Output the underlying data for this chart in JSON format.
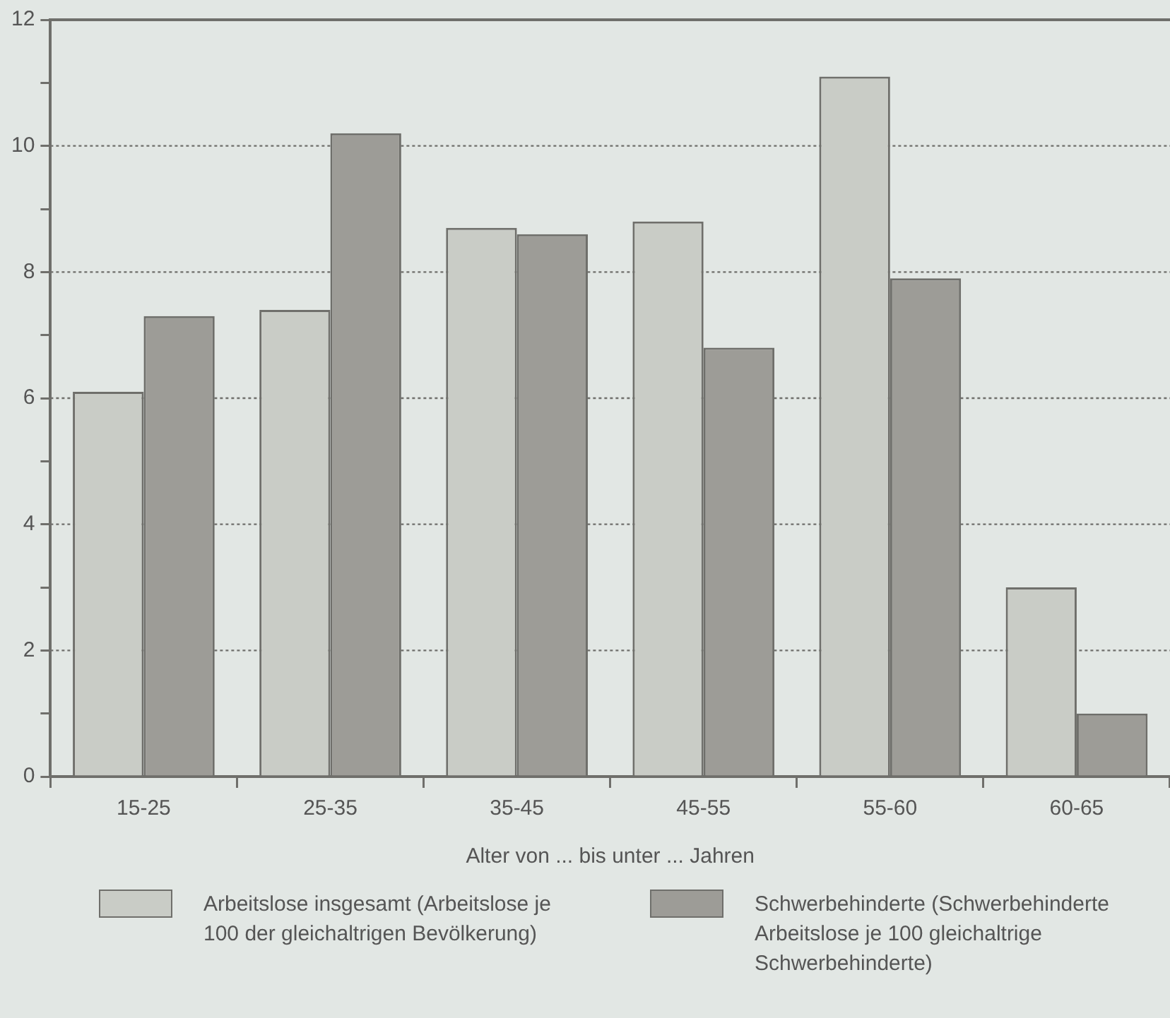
{
  "chart_data": {
    "type": "bar",
    "xlabel": "Alter von ... bis unter ... Jahren",
    "categories": [
      "15-25",
      "25-35",
      "35-45",
      "45-55",
      "55-60",
      "60-65"
    ],
    "series": [
      {
        "name": "Arbeitslose insgesamt (Arbeitslose je 100 der gleichaltrigen Bevölkerung)",
        "color": "#c9ccc6",
        "values": [
          6.1,
          7.4,
          8.7,
          8.8,
          11.1,
          3.0
        ]
      },
      {
        "name": "Schwerbehinderte (Schwerbehinderte Arbeitslose je 100 gleichaltrige Schwerbehinderte)",
        "color": "#9d9c97",
        "values": [
          7.3,
          10.2,
          8.6,
          6.8,
          7.9,
          1.0
        ]
      }
    ],
    "ylim": [
      0,
      12
    ],
    "yticks": [
      0,
      {
        "value": 1,
        "label": null
      },
      2,
      {
        "value": 3,
        "label": null
      },
      4,
      {
        "value": 5,
        "label": null
      },
      6,
      {
        "value": 7,
        "label": null
      },
      8,
      {
        "value": 9,
        "label": null
      },
      10,
      {
        "value": 11,
        "label": null
      },
      12
    ],
    "grid": "y",
    "legend": "bottom"
  }
}
